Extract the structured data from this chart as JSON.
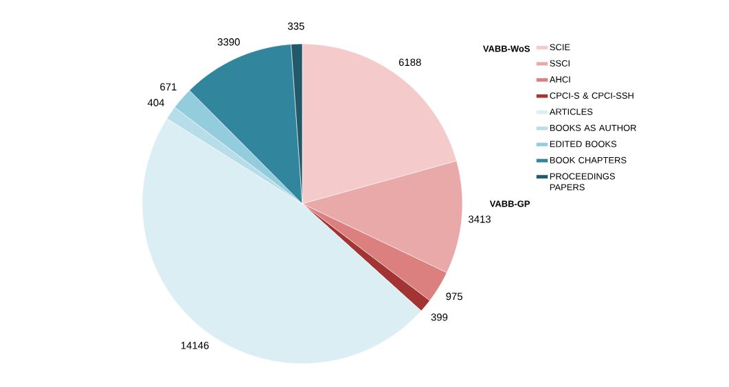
{
  "chart_data": {
    "type": "pie",
    "categories": [
      "SCIE",
      "SSCI",
      "AHCI",
      "CPCI-S & CPCI-SSH",
      "ARTICLES",
      "BOOKS AS AUTHOR",
      "EDITED BOOKS",
      "BOOK CHAPTERS",
      "PROCEEDINGS PAPERS"
    ],
    "values": [
      6188,
      3413,
      975,
      399,
      14146,
      404,
      671,
      3390,
      335
    ],
    "colors": [
      "#f4caca",
      "#eaa9a9",
      "#dc7f7f",
      "#a33434",
      "#dbeef4",
      "#b7dde8",
      "#93cddd",
      "#31859c",
      "#215968"
    ],
    "data_labels": true,
    "legend": "right",
    "annotations": [
      "VABB-WoS",
      "VABB-GP"
    ]
  }
}
